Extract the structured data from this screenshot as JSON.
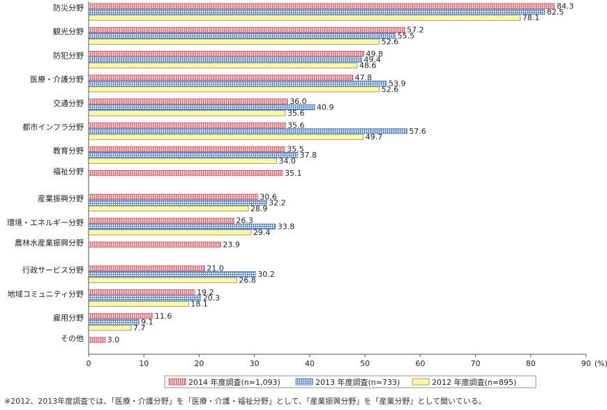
{
  "chart_data": {
    "type": "bar",
    "orientation": "horizontal",
    "categories": [
      "防災分野",
      "観光分野",
      "防犯分野",
      "医療・介護分野",
      "交通分野",
      "都市インフラ分野",
      "教育分野",
      "福祉分野",
      "産業振興分野",
      "環境・エネルギー分野",
      "農林水産業振興分野",
      "行政サービス分野",
      "地域コミュニティ分野",
      "雇用分野",
      "その他"
    ],
    "series": [
      {
        "name": "2014 年度調査(n=1,093)",
        "color": "#e8747c",
        "pattern": "vertical-stripes",
        "values": [
          84.3,
          57.2,
          49.8,
          47.8,
          36.0,
          35.6,
          35.5,
          35.1,
          30.6,
          26.3,
          23.9,
          21.0,
          19.2,
          11.6,
          3.0
        ]
      },
      {
        "name": "2013 年度調査(n=733)",
        "color": "#5b8fd4",
        "pattern": "grid",
        "values": [
          82.5,
          55.5,
          49.4,
          53.9,
          40.9,
          57.6,
          37.8,
          null,
          32.2,
          33.8,
          null,
          30.2,
          20.3,
          9.1,
          null
        ]
      },
      {
        "name": "2012 年度調査(n=895)",
        "color": "#fdf7a8",
        "pattern": "solid",
        "values": [
          78.1,
          52.6,
          48.6,
          52.6,
          35.6,
          49.7,
          34.0,
          null,
          28.9,
          29.4,
          null,
          26.8,
          18.1,
          7.7,
          null
        ]
      }
    ],
    "xlim": [
      0,
      90
    ],
    "xticks": [
      "0",
      "10",
      "20",
      "30",
      "40",
      "50",
      "60",
      "70",
      "80",
      "90"
    ],
    "x_unit": "(%)",
    "grid": false,
    "legend_position": "bottom-right"
  },
  "footnote": "※2012、2013年度調査では、「医療・介護分野」を「医療・介護・福祉分野」として、「産業振興分野」を「産業分野」として聞いている。"
}
